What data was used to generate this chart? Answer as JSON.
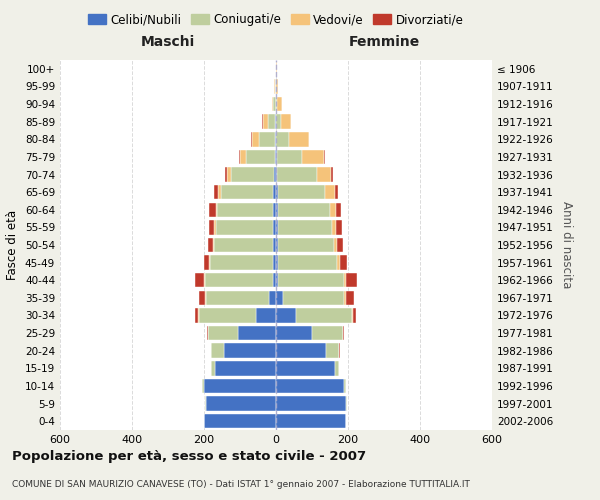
{
  "age_groups": [
    "0-4",
    "5-9",
    "10-14",
    "15-19",
    "20-24",
    "25-29",
    "30-34",
    "35-39",
    "40-44",
    "45-49",
    "50-54",
    "55-59",
    "60-64",
    "65-69",
    "70-74",
    "75-79",
    "80-84",
    "85-89",
    "90-94",
    "95-99",
    "100+"
  ],
  "birth_years": [
    "2002-2006",
    "1997-2001",
    "1992-1996",
    "1987-1991",
    "1982-1986",
    "1977-1981",
    "1972-1976",
    "1967-1971",
    "1962-1966",
    "1957-1961",
    "1952-1956",
    "1947-1951",
    "1942-1946",
    "1937-1941",
    "1932-1936",
    "1927-1931",
    "1922-1926",
    "1917-1921",
    "1912-1916",
    "1907-1911",
    "≤ 1906"
  ],
  "males": {
    "celibi": [
      200,
      195,
      200,
      170,
      145,
      105,
      55,
      20,
      8,
      8,
      8,
      8,
      8,
      8,
      5,
      3,
      2,
      2,
      1,
      1,
      0
    ],
    "coniugati": [
      0,
      2,
      5,
      10,
      35,
      85,
      160,
      175,
      190,
      175,
      165,
      160,
      155,
      145,
      120,
      80,
      45,
      20,
      6,
      2,
      1
    ],
    "vedovi": [
      0,
      0,
      0,
      0,
      0,
      0,
      2,
      2,
      2,
      3,
      3,
      4,
      5,
      8,
      12,
      18,
      20,
      15,
      5,
      2,
      0
    ],
    "divorziati": [
      0,
      0,
      0,
      0,
      1,
      2,
      8,
      18,
      25,
      15,
      12,
      15,
      18,
      10,
      6,
      3,
      2,
      1,
      0,
      0,
      0
    ]
  },
  "females": {
    "nubili": [
      195,
      195,
      190,
      165,
      140,
      100,
      55,
      20,
      5,
      5,
      5,
      5,
      5,
      5,
      3,
      2,
      1,
      1,
      0,
      0,
      0
    ],
    "coniugate": [
      0,
      2,
      5,
      10,
      35,
      85,
      155,
      170,
      185,
      165,
      155,
      150,
      145,
      130,
      110,
      70,
      35,
      12,
      4,
      1,
      0
    ],
    "vedove": [
      0,
      0,
      0,
      0,
      0,
      2,
      5,
      5,
      5,
      8,
      10,
      12,
      18,
      28,
      40,
      62,
      55,
      28,
      12,
      5,
      2
    ],
    "divorziate": [
      0,
      0,
      0,
      0,
      2,
      2,
      8,
      22,
      30,
      18,
      15,
      15,
      12,
      8,
      5,
      2,
      1,
      0,
      0,
      0,
      0
    ]
  },
  "colors": {
    "celibi": "#4472C4",
    "coniugati": "#BFCE9E",
    "vedovi": "#F5C37A",
    "divorziati": "#C0392B"
  },
  "title": "Popolazione per età, sesso e stato civile - 2007",
  "subtitle": "COMUNE DI SAN MAURIZIO CANAVESE (TO) - Dati ISTAT 1° gennaio 2007 - Elaborazione TUTTITALIA.IT",
  "xlabel_left": "Maschi",
  "xlabel_right": "Femmine",
  "ylabel_left": "Fasce di età",
  "ylabel_right": "Anni di nascita",
  "xlim": 600,
  "legend_labels": [
    "Celibi/Nubili",
    "Coniugati/e",
    "Vedovi/e",
    "Divorziati/e"
  ],
  "bg_color": "#F0F0E8",
  "plot_bg": "#FFFFFF",
  "grid_color": "#CCCCCC"
}
